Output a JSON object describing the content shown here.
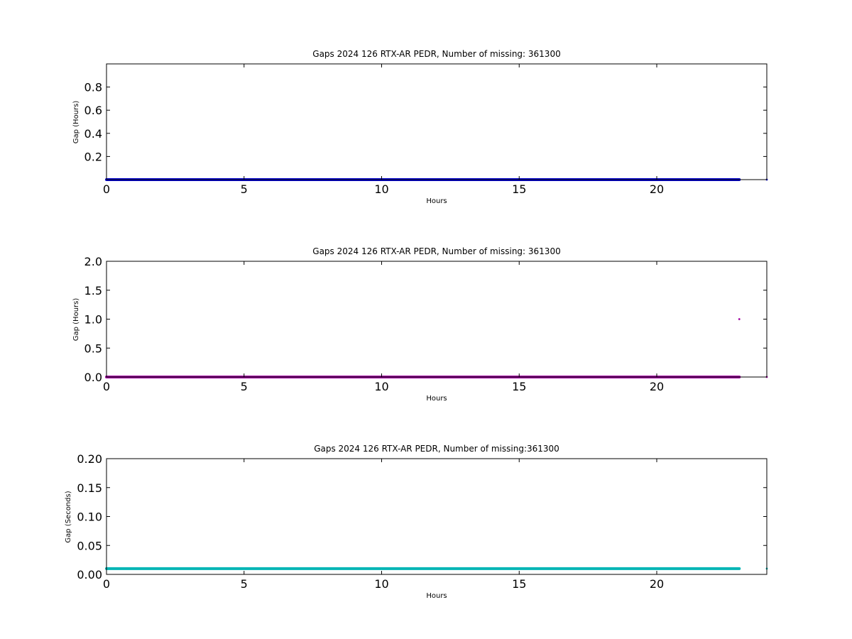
{
  "chart_data": [
    {
      "type": "scatter",
      "title": "Gaps 2024 126 RTX-AR  PEDR, Number of missing: 361300",
      "xlabel": "Hours",
      "ylabel": "Gap (Hours)",
      "xlim": [
        0,
        24
      ],
      "ylim": [
        0,
        1.0
      ],
      "xticks": [
        0,
        5,
        10,
        15,
        20
      ],
      "yticks": [
        0.2,
        0.4,
        0.6,
        0.8
      ],
      "ytick_labels": [
        "0.2",
        "0.4",
        "0.6",
        "0.8"
      ],
      "grid": false,
      "series": [
        {
          "color": "#0000cc",
          "segments": [
            {
              "x_start": 0,
              "x_end": 23.0,
              "y": 0.0
            }
          ],
          "points": [
            {
              "x": 24.0,
              "y": 0.0
            }
          ]
        }
      ]
    },
    {
      "type": "scatter",
      "title": "Gaps 2024 126 RTX-AR  PEDR, Number of missing: 361300",
      "xlabel": "Hours",
      "ylabel": "Gap (Hours)",
      "xlim": [
        0,
        24
      ],
      "ylim": [
        0,
        2.0
      ],
      "xticks": [
        0,
        5,
        10,
        15,
        20
      ],
      "yticks": [
        0.0,
        0.5,
        1.0,
        1.5,
        2.0
      ],
      "ytick_labels": [
        "0.0",
        "0.5",
        "1.0",
        "1.5",
        "2.0"
      ],
      "grid": false,
      "series": [
        {
          "color": "#a000a0",
          "segments": [
            {
              "x_start": 0,
              "x_end": 23.0,
              "y": 0.0
            }
          ],
          "points": [
            {
              "x": 23.0,
              "y": 1.0
            },
            {
              "x": 24.0,
              "y": 0.0
            }
          ]
        }
      ]
    },
    {
      "type": "scatter",
      "title": "Gaps 2024 126 RTX-AR  PEDR, Number of missing:361300",
      "xlabel": "Hours",
      "ylabel": "Gap (Seconds)",
      "xlim": [
        0,
        24
      ],
      "ylim": [
        0,
        0.2
      ],
      "xticks": [
        0,
        5,
        10,
        15,
        20
      ],
      "yticks": [
        0.0,
        0.05,
        0.1,
        0.15,
        0.2
      ],
      "ytick_labels": [
        "0.00",
        "0.05",
        "0.10",
        "0.15",
        "0.20"
      ],
      "grid": false,
      "series": [
        {
          "color": "#00b5b5",
          "segments": [
            {
              "x_start": 0,
              "x_end": 23.0,
              "y": 0.01
            }
          ],
          "points": [
            {
              "x": 24.0,
              "y": 0.01
            }
          ]
        }
      ]
    }
  ]
}
